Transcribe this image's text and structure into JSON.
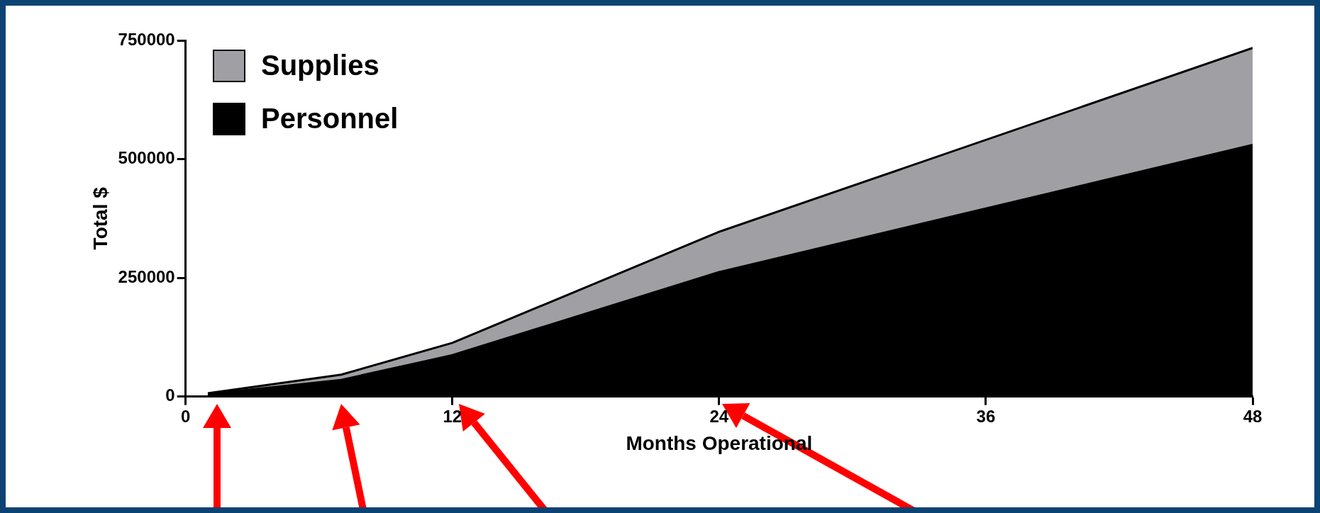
{
  "chart_data": {
    "type": "area",
    "xlabel": "Months Operational",
    "ylabel": "Total $",
    "x": [
      1,
      7,
      12,
      24,
      48
    ],
    "stacked": true,
    "series": [
      {
        "name": "Personnel",
        "color": "#000000",
        "values": [
          5000,
          35000,
          87000,
          262000,
          530000
        ]
      },
      {
        "name": "Supplies",
        "color": "#a0a0a4",
        "values": [
          2000,
          11000,
          26000,
          85000,
          204000
        ]
      }
    ],
    "xlim": [
      0,
      48
    ],
    "xticks": [
      0,
      12,
      24,
      36,
      48
    ],
    "ylim": [
      0,
      750000
    ],
    "yticks": [
      0,
      250000,
      500000,
      750000
    ],
    "grid": false,
    "legend": "top left",
    "marker": "none"
  }
}
